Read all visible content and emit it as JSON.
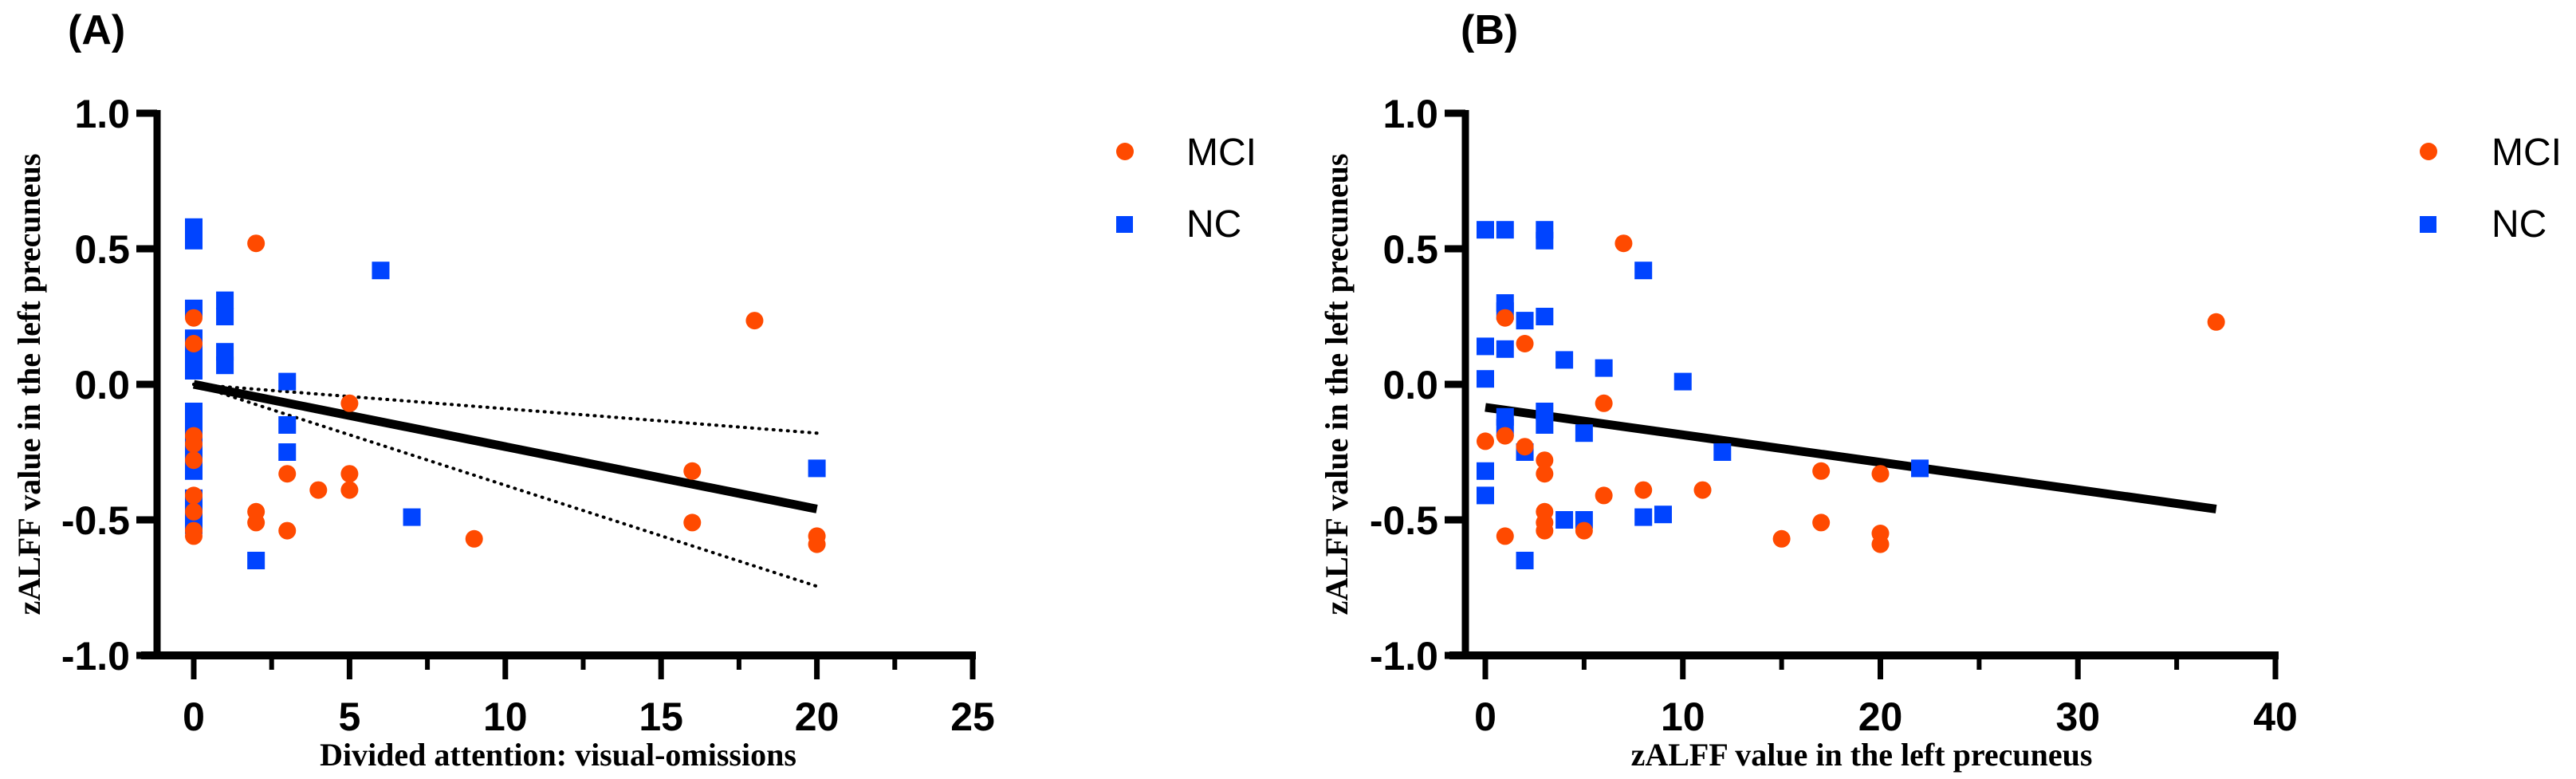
{
  "colors": {
    "MCI": "#ff4a00",
    "NC": "#0044ff",
    "axis": "#000000",
    "fit": "#000000"
  },
  "chart_data": [
    {
      "panel": "(A)",
      "type": "scatter",
      "title": "",
      "xlabel": "Divided attention: visual-omissions",
      "ylabel": "zALFF value in the left precuneus",
      "xlim": [
        0,
        25
      ],
      "ylim": [
        -1.0,
        1.0
      ],
      "xticks": [
        0,
        5,
        10,
        15,
        20,
        25
      ],
      "xtick_labels": [
        "0",
        "5",
        "10",
        "15",
        "20",
        "25"
      ],
      "yticks": [
        -1.0,
        -0.5,
        0.0,
        0.5,
        1.0
      ],
      "ytick_labels": [
        "-1.0",
        "-0.5",
        "0.0",
        "0.5",
        "1.0"
      ],
      "grid": false,
      "legend": {
        "placement": "right",
        "entries": [
          {
            "label": "MCI",
            "marker": "circle"
          },
          {
            "label": "NC",
            "marker": "square"
          }
        ]
      },
      "series": [
        {
          "name": "MCI",
          "marker": "circle",
          "points": [
            [
              0,
              0.245
            ],
            [
              0,
              0.15
            ],
            [
              0,
              -0.19
            ],
            [
              0,
              -0.22
            ],
            [
              0,
              -0.28
            ],
            [
              0,
              -0.41
            ],
            [
              0,
              -0.47
            ],
            [
              0,
              -0.54
            ],
            [
              0,
              -0.56
            ],
            [
              2,
              0.52
            ],
            [
              2,
              -0.47
            ],
            [
              2,
              -0.51
            ],
            [
              3,
              -0.33
            ],
            [
              3,
              -0.54
            ],
            [
              4,
              -0.39
            ],
            [
              5,
              -0.07
            ],
            [
              5,
              -0.33
            ],
            [
              5,
              -0.39
            ],
            [
              9,
              -0.57
            ],
            [
              16,
              -0.32
            ],
            [
              16,
              -0.51
            ],
            [
              18,
              0.235
            ],
            [
              20,
              -0.56
            ],
            [
              20,
              -0.59
            ]
          ]
        },
        {
          "name": "NC",
          "marker": "square",
          "points": [
            [
              0,
              0.58
            ],
            [
              0,
              0.53
            ],
            [
              0,
              0.28
            ],
            [
              0,
              0.17
            ],
            [
              0,
              0.11
            ],
            [
              0,
              0.05
            ],
            [
              0,
              -0.1
            ],
            [
              0,
              -0.15
            ],
            [
              0,
              -0.21
            ],
            [
              0,
              -0.27
            ],
            [
              0,
              -0.32
            ],
            [
              0,
              -0.42
            ],
            [
              0,
              -0.47
            ],
            [
              0,
              -0.52
            ],
            [
              1,
              0.31
            ],
            [
              1,
              0.25
            ],
            [
              1,
              0.12
            ],
            [
              1,
              0.07
            ],
            [
              2,
              -0.65
            ],
            [
              3,
              0.01
            ],
            [
              3,
              -0.15
            ],
            [
              3,
              -0.25
            ],
            [
              6,
              0.42
            ],
            [
              7,
              -0.49
            ],
            [
              20,
              -0.31
            ]
          ]
        }
      ],
      "fit_line": {
        "x": [
          0,
          20
        ],
        "y": [
          0.0,
          -0.46
        ],
        "style": "solid"
      },
      "confidence_band": {
        "upper": {
          "x": [
            0,
            20
          ],
          "y": [
            0.0,
            -0.18
          ]
        },
        "lower": {
          "x": [
            0,
            20
          ],
          "y": [
            0.0,
            -0.745
          ]
        },
        "style": "dotted"
      }
    },
    {
      "panel": "(B)",
      "type": "scatter",
      "title": "",
      "xlabel": "zALFF value in the left precuneus",
      "ylabel": "zALFF value in the left precuneus",
      "xlim": [
        0,
        40
      ],
      "ylim": [
        -1.0,
        1.0
      ],
      "xticks": [
        0,
        10,
        20,
        30,
        40
      ],
      "xtick_labels": [
        "0",
        "10",
        "20",
        "30",
        "40"
      ],
      "yticks": [
        -1.0,
        -0.5,
        0.0,
        0.5,
        1.0
      ],
      "ytick_labels": [
        "-1.0",
        "-0.5",
        "0.0",
        "0.5",
        "1.0"
      ],
      "grid": false,
      "legend": {
        "placement": "right",
        "entries": [
          {
            "label": "MCI",
            "marker": "circle"
          },
          {
            "label": "NC",
            "marker": "square"
          }
        ]
      },
      "series": [
        {
          "name": "MCI",
          "marker": "circle",
          "points": [
            [
              0,
              -0.21
            ],
            [
              1,
              0.245
            ],
            [
              1,
              -0.19
            ],
            [
              1,
              -0.56
            ],
            [
              2,
              0.15
            ],
            [
              2,
              -0.23
            ],
            [
              3,
              -0.28
            ],
            [
              3,
              -0.33
            ],
            [
              3,
              -0.47
            ],
            [
              3,
              -0.51
            ],
            [
              3,
              -0.54
            ],
            [
              5,
              -0.54
            ],
            [
              6,
              -0.07
            ],
            [
              6,
              -0.41
            ],
            [
              7,
              0.52
            ],
            [
              8,
              -0.39
            ],
            [
              11,
              -0.39
            ],
            [
              15,
              -0.57
            ],
            [
              17,
              -0.32
            ],
            [
              17,
              -0.51
            ],
            [
              20,
              -0.33
            ],
            [
              20,
              -0.55
            ],
            [
              20,
              -0.59
            ],
            [
              37,
              0.23
            ]
          ]
        },
        {
          "name": "NC",
          "marker": "square",
          "points": [
            [
              0,
              0.57
            ],
            [
              0,
              0.14
            ],
            [
              0,
              0.02
            ],
            [
              0,
              -0.32
            ],
            [
              0,
              -0.41
            ],
            [
              1,
              0.57
            ],
            [
              1,
              0.3
            ],
            [
              1,
              0.27
            ],
            [
              1,
              0.13
            ],
            [
              1,
              -0.12
            ],
            [
              1,
              -0.16
            ],
            [
              2,
              0.235
            ],
            [
              2,
              -0.25
            ],
            [
              2,
              -0.65
            ],
            [
              3,
              0.57
            ],
            [
              3,
              0.53
            ],
            [
              3,
              0.25
            ],
            [
              3,
              -0.1
            ],
            [
              3,
              -0.15
            ],
            [
              4,
              0.09
            ],
            [
              4,
              -0.5
            ],
            [
              5,
              -0.18
            ],
            [
              5,
              -0.5
            ],
            [
              6,
              0.06
            ],
            [
              8,
              0.42
            ],
            [
              8,
              -0.49
            ],
            [
              9,
              -0.48
            ],
            [
              10,
              0.01
            ],
            [
              12,
              -0.25
            ],
            [
              22,
              -0.31
            ]
          ]
        }
      ],
      "fit_line": {
        "x": [
          0,
          37
        ],
        "y": [
          -0.085,
          -0.46
        ],
        "style": "solid"
      }
    }
  ]
}
